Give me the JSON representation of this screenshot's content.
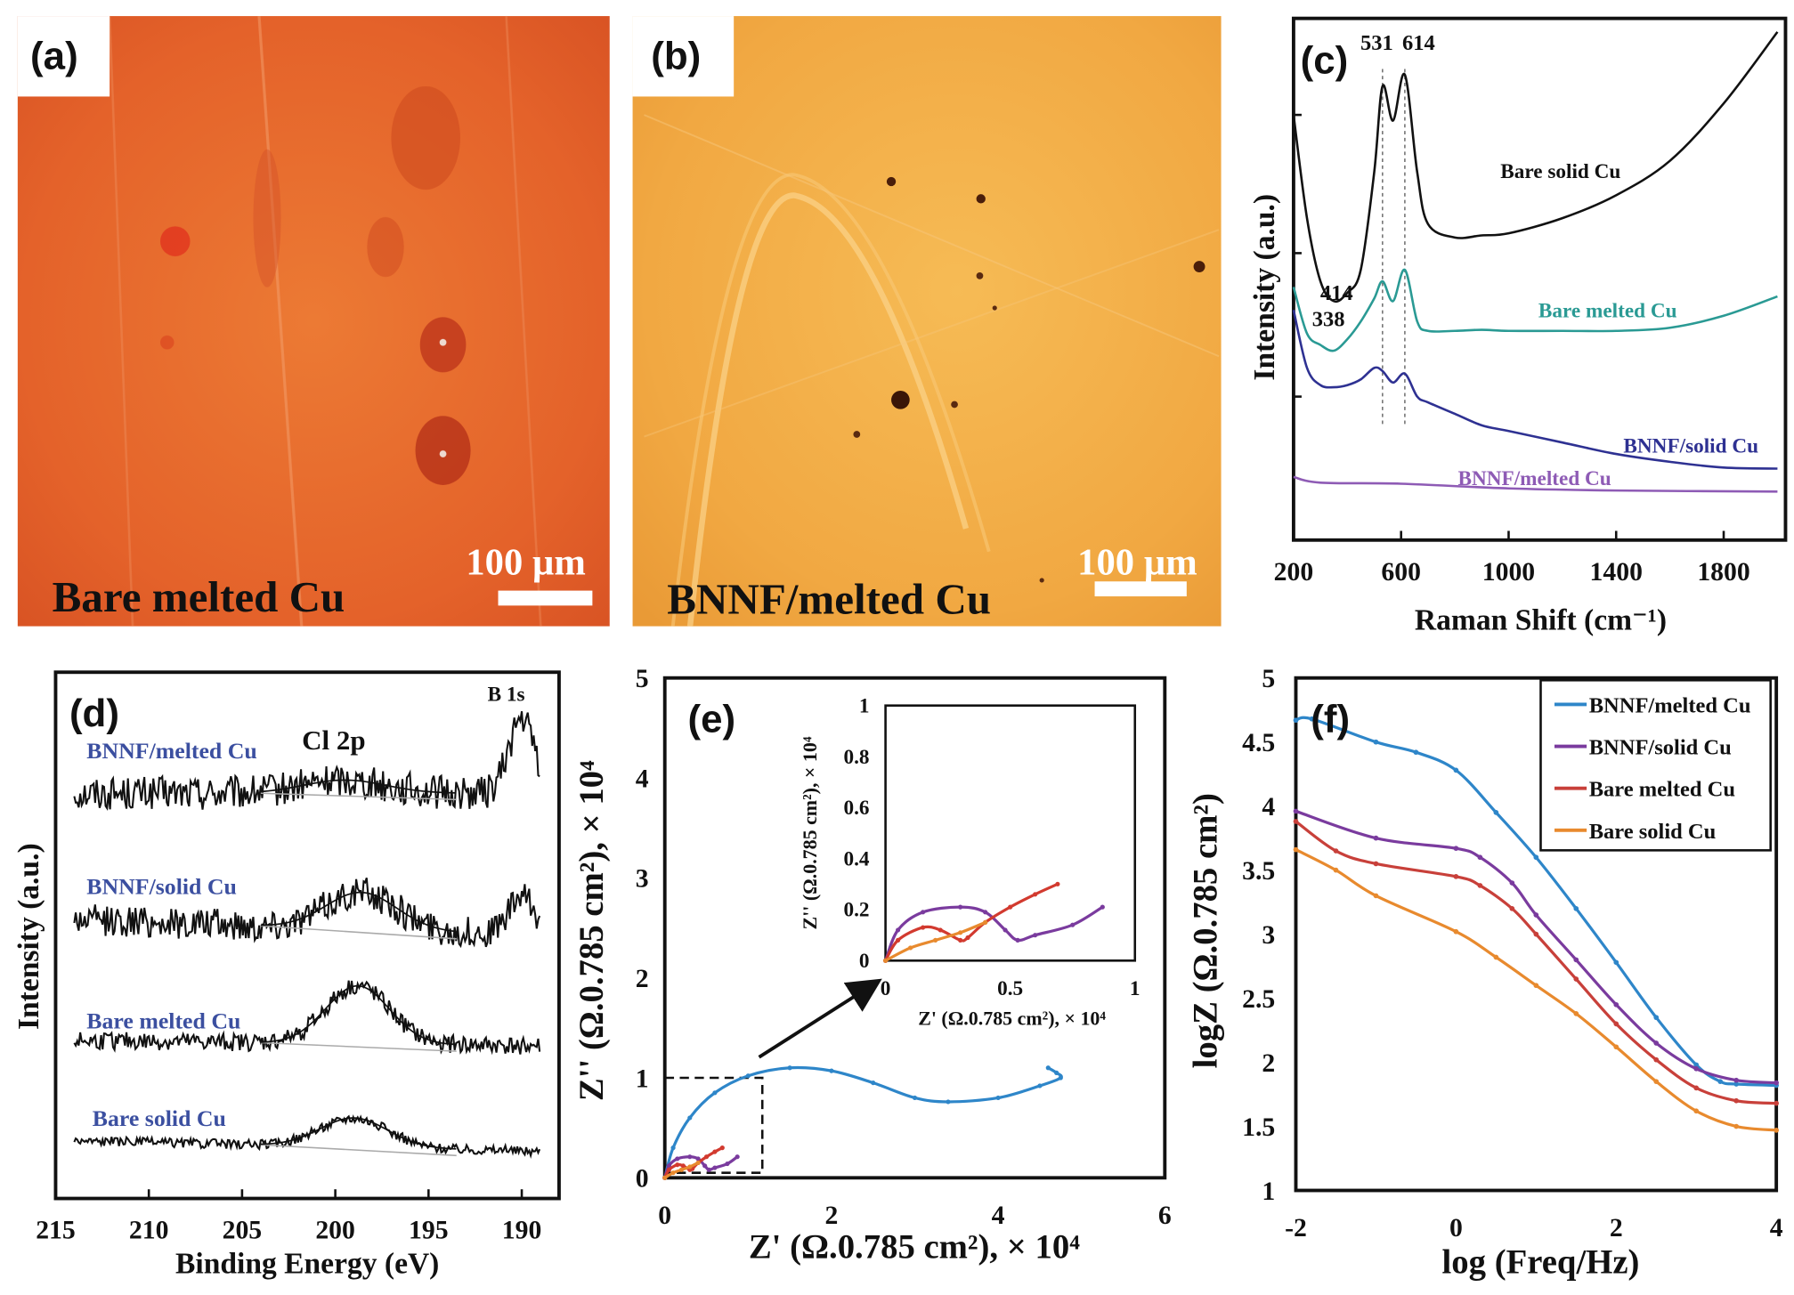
{
  "panel_a": {
    "label": "(a)",
    "caption": "Bare melted Cu",
    "scale_bar": "100 µm"
  },
  "panel_b": {
    "label": "(b)",
    "caption": "BNNF/melted Cu",
    "scale_bar": "100 µm"
  },
  "chart_data": [
    {
      "panel_label": "(c)",
      "type": "line",
      "title": "",
      "xlabel": "Raman Shift (cm⁻¹)",
      "ylabel": "Intensity (a.u.)",
      "xlim": [
        200,
        2030
      ],
      "ylim": [
        0,
        100
      ],
      "xticks": [
        200,
        600,
        1000,
        1400,
        1800
      ],
      "annotations": [
        {
          "text": "531",
          "x": 531,
          "y": 94,
          "dashed_line": true
        },
        {
          "text": "614",
          "x": 614,
          "y": 94,
          "dashed_line": true
        },
        {
          "text": "414",
          "x": 360,
          "y": 46
        },
        {
          "text": "338",
          "x": 330,
          "y": 41
        }
      ],
      "series": [
        {
          "name": "Bare solid Cu",
          "color": "#111111",
          "points": [
            [
              200,
              81.5
            ],
            [
              250,
              61.7
            ],
            [
              300,
              49.6
            ],
            [
              350,
              45.8
            ],
            [
              400,
              47.4
            ],
            [
              450,
              51.8
            ],
            [
              500,
              70.5
            ],
            [
              531,
              87
            ],
            [
              570,
              80.4
            ],
            [
              614,
              89.2
            ],
            [
              660,
              70.5
            ],
            [
              700,
              60.6
            ],
            [
              800,
              58
            ],
            [
              900,
              58.4
            ],
            [
              1000,
              58.8
            ],
            [
              1200,
              61.7
            ],
            [
              1400,
              66.1
            ],
            [
              1600,
              72.7
            ],
            [
              1800,
              83.7
            ],
            [
              2000,
              97.4
            ]
          ]
        },
        {
          "name": "Bare melted Cu",
          "color": "#2a9a94",
          "points": [
            [
              200,
              48.5
            ],
            [
              250,
              39.6
            ],
            [
              300,
              37.4
            ],
            [
              350,
              36.3
            ],
            [
              400,
              38.5
            ],
            [
              450,
              41.9
            ],
            [
              500,
              46.3
            ],
            [
              531,
              49.6
            ],
            [
              570,
              45.8
            ],
            [
              614,
              51.8
            ],
            [
              660,
              41.9
            ],
            [
              700,
              40.1
            ],
            [
              800,
              40.1
            ],
            [
              900,
              40.3
            ],
            [
              1000,
              40.1
            ],
            [
              1200,
              40.1
            ],
            [
              1400,
              40.1
            ],
            [
              1600,
              40.7
            ],
            [
              1800,
              43
            ],
            [
              2000,
              46.7
            ]
          ]
        },
        {
          "name": "BNNF/solid Cu",
          "color": "#2e3192",
          "points": [
            [
              200,
              44.1
            ],
            [
              250,
              33
            ],
            [
              300,
              29.7
            ],
            [
              350,
              29.3
            ],
            [
              400,
              29.7
            ],
            [
              450,
              30.8
            ],
            [
              500,
              33
            ],
            [
              531,
              32.4
            ],
            [
              570,
              30.2
            ],
            [
              614,
              31.9
            ],
            [
              660,
              27.5
            ],
            [
              700,
              26.4
            ],
            [
              800,
              24.2
            ],
            [
              900,
              22
            ],
            [
              1000,
              20.9
            ],
            [
              1200,
              18.7
            ],
            [
              1400,
              16.5
            ],
            [
              1600,
              15
            ],
            [
              1800,
              13.9
            ],
            [
              2000,
              13.7
            ]
          ]
        },
        {
          "name": "BNNF/melted Cu",
          "color": "#8e5bb5",
          "points": [
            [
              200,
              12.1
            ],
            [
              300,
              11
            ],
            [
              600,
              10.8
            ],
            [
              1000,
              9.9
            ],
            [
              1400,
              9.5
            ],
            [
              2000,
              9.3
            ]
          ]
        }
      ]
    },
    {
      "panel_label": "(d)",
      "type": "line",
      "title": "",
      "xlabel": "Binding Energy (eV)",
      "ylabel": "Intensity (a.u.)",
      "xlim": [
        215,
        188
      ],
      "ylim": [
        0,
        100
      ],
      "xticks": [
        215,
        210,
        205,
        200,
        195,
        190
      ],
      "annotations": [
        {
          "text": "Cl 2p"
        },
        {
          "text": "B 1s"
        }
      ],
      "label_color": "#3b4fa0",
      "series": [
        {
          "name": "BNNF/melted Cu",
          "x_range": [
            214,
            189
          ],
          "baseline": 77,
          "slope": 0,
          "noise": 3.2,
          "peaks": [
            {
              "center": 199.5,
              "height": 2.5,
              "width": 2.2
            },
            {
              "center": 190,
              "height": 14,
              "width": 0.7
            }
          ]
        },
        {
          "name": "BNNF/solid Cu",
          "x_range": [
            214,
            189
          ],
          "baseline": 53,
          "slope": 0.12,
          "noise": 3,
          "peaks": [
            {
              "center": 198.6,
              "height": 7,
              "width": 1.9
            },
            {
              "center": 190,
              "height": 7,
              "width": 0.7
            }
          ]
        },
        {
          "name": "Bare melted Cu",
          "x_range": [
            214,
            189
          ],
          "baseline": 30,
          "slope": 0.04,
          "noise": 1.7,
          "peaks": [
            {
              "center": 198.8,
              "height": 11,
              "width": 1.7
            }
          ]
        },
        {
          "name": "Bare solid Cu",
          "x_range": [
            214,
            189
          ],
          "baseline": 11,
          "slope": 0.08,
          "noise": 0.9,
          "peaks": [
            {
              "center": 199,
              "height": 5.5,
              "width": 1.8
            }
          ]
        }
      ]
    },
    {
      "panel_label": "(e)",
      "type": "line",
      "title": "",
      "xlabel": "Z' (Ω.0.785 cm²), × 10⁴",
      "ylabel": "Z'' (Ω.0.785 cm²), × 10⁴",
      "xlim": [
        0,
        6
      ],
      "ylim": [
        0,
        5
      ],
      "xticks": [
        0,
        2,
        4,
        6
      ],
      "yticks": [
        0,
        1,
        2,
        3,
        4,
        5
      ],
      "zoom_region": {
        "x": [
          0,
          1.17
        ],
        "y": [
          0.05,
          1.0
        ]
      },
      "inset": {
        "xlabel": "Z' (Ω.0.785 cm²), × 10⁴",
        "ylabel": "Z'' (Ω.0.785 cm²), × 10⁴",
        "xlim": [
          0,
          1
        ],
        "ylim": [
          0,
          1
        ],
        "xticks": [
          0,
          0.5,
          1
        ],
        "yticks": [
          0,
          0.2,
          0.4,
          0.6,
          0.8,
          1
        ]
      },
      "series": [
        {
          "name": "BNNF/melted Cu",
          "color": "#2e86c9",
          "in_inset": false,
          "points": [
            [
              0,
              0
            ],
            [
              0.1,
              0.3
            ],
            [
              0.3,
              0.6
            ],
            [
              0.6,
              0.85
            ],
            [
              1,
              1.02
            ],
            [
              1.5,
              1.1
            ],
            [
              2,
              1.07
            ],
            [
              2.5,
              0.95
            ],
            [
              3,
              0.8
            ],
            [
              3.4,
              0.76
            ],
            [
              4,
              0.8
            ],
            [
              4.5,
              0.92
            ],
            [
              4.75,
              1.0
            ],
            [
              4.7,
              1.05
            ],
            [
              4.6,
              1.1
            ]
          ]
        },
        {
          "name": "BNNF/solid Cu",
          "color": "#7a3b9e",
          "in_inset": true,
          "points": [
            [
              0,
              0
            ],
            [
              0.05,
              0.12
            ],
            [
              0.15,
              0.19
            ],
            [
              0.3,
              0.21
            ],
            [
              0.4,
              0.19
            ],
            [
              0.48,
              0.12
            ],
            [
              0.53,
              0.08
            ],
            [
              0.6,
              0.1
            ],
            [
              0.75,
              0.14
            ],
            [
              0.87,
              0.21
            ]
          ]
        },
        {
          "name": "Bare melted Cu",
          "color": "#d23a2f",
          "in_inset": true,
          "points": [
            [
              0,
              0
            ],
            [
              0.05,
              0.08
            ],
            [
              0.15,
              0.13
            ],
            [
              0.22,
              0.12
            ],
            [
              0.3,
              0.08
            ],
            [
              0.33,
              0.09
            ],
            [
              0.4,
              0.15
            ],
            [
              0.5,
              0.21
            ],
            [
              0.6,
              0.26
            ],
            [
              0.69,
              0.3
            ]
          ]
        },
        {
          "name": "Bare solid Cu",
          "color": "#e88a2e",
          "in_inset": true,
          "points": [
            [
              0,
              0
            ],
            [
              0.1,
              0.05
            ],
            [
              0.2,
              0.08
            ],
            [
              0.3,
              0.11
            ],
            [
              0.4,
              0.15
            ]
          ]
        }
      ]
    },
    {
      "panel_label": "(f)",
      "type": "line",
      "title": "",
      "xlabel": "log (Freq/Hz)",
      "ylabel": "logZ (Ω.0.785 cm²)",
      "xlim": [
        -2,
        4
      ],
      "ylim": [
        1,
        5
      ],
      "xticks": [
        -2,
        0,
        2,
        4
      ],
      "yticks": [
        1,
        1.5,
        2,
        2.5,
        3,
        3.5,
        4,
        4.5,
        5
      ],
      "legend": "top-right",
      "series": [
        {
          "name": "BNNF/melted Cu",
          "color": "#2e86c9",
          "points": [
            [
              -2,
              4.67
            ],
            [
              -1.8,
              4.68
            ],
            [
              -1,
              4.5
            ],
            [
              -0.5,
              4.42
            ],
            [
              0,
              4.28
            ],
            [
              0.5,
              3.95
            ],
            [
              1,
              3.6
            ],
            [
              1.5,
              3.2
            ],
            [
              2,
              2.78
            ],
            [
              2.5,
              2.35
            ],
            [
              3,
              1.98
            ],
            [
              3.3,
              1.85
            ],
            [
              3.5,
              1.83
            ],
            [
              4,
              1.82
            ]
          ]
        },
        {
          "name": "BNNF/solid Cu",
          "color": "#7a3b9e",
          "points": [
            [
              -2,
              3.96
            ],
            [
              -1,
              3.75
            ],
            [
              0,
              3.67
            ],
            [
              0.3,
              3.6
            ],
            [
              0.7,
              3.4
            ],
            [
              1,
              3.15
            ],
            [
              1.5,
              2.8
            ],
            [
              2,
              2.45
            ],
            [
              2.5,
              2.15
            ],
            [
              3,
              1.95
            ],
            [
              3.5,
              1.86
            ],
            [
              4,
              1.84
            ]
          ]
        },
        {
          "name": "Bare melted Cu",
          "color": "#c8403a",
          "points": [
            [
              -2,
              3.88
            ],
            [
              -1.5,
              3.65
            ],
            [
              -1,
              3.55
            ],
            [
              0,
              3.45
            ],
            [
              0.3,
              3.38
            ],
            [
              0.7,
              3.2
            ],
            [
              1,
              3.0
            ],
            [
              1.5,
              2.65
            ],
            [
              2,
              2.3
            ],
            [
              2.5,
              2.02
            ],
            [
              3,
              1.8
            ],
            [
              3.5,
              1.7
            ],
            [
              4,
              1.68
            ]
          ]
        },
        {
          "name": "Bare solid Cu",
          "color": "#e88a2e",
          "points": [
            [
              -2,
              3.66
            ],
            [
              -1.5,
              3.5
            ],
            [
              -1,
              3.3
            ],
            [
              0,
              3.02
            ],
            [
              0.5,
              2.82
            ],
            [
              1,
              2.6
            ],
            [
              1.5,
              2.38
            ],
            [
              2,
              2.12
            ],
            [
              2.5,
              1.85
            ],
            [
              3,
              1.62
            ],
            [
              3.5,
              1.5
            ],
            [
              4,
              1.47
            ]
          ]
        }
      ]
    }
  ]
}
